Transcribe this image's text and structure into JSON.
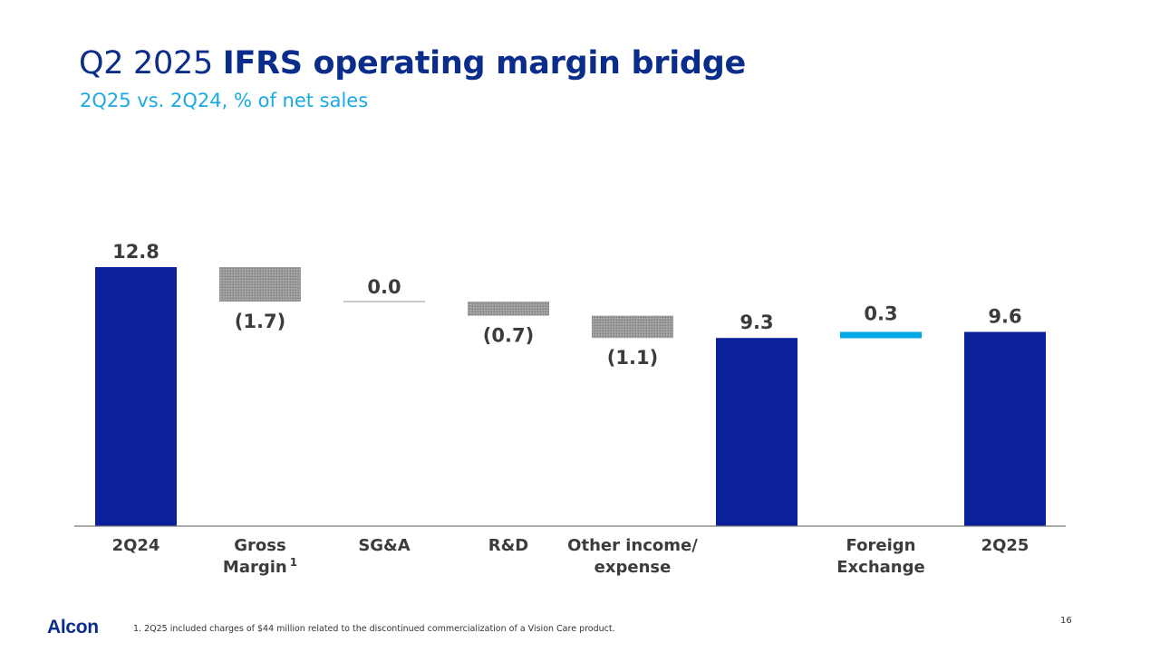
{
  "title": {
    "light": "Q2 2025",
    "bold": "IFRS operating margin bridge"
  },
  "subtitle": "2Q25 vs. 2Q24, % of net sales",
  "colors": {
    "total": "#0a219b",
    "negative": "#999999",
    "neutral": "#aaaaaa",
    "positive": "#00a9e6",
    "text": "#3c3c3c",
    "axis": "#777777"
  },
  "chart_data": {
    "type": "bar",
    "subtype": "waterfall",
    "title": "Q2 2025 IFRS operating margin bridge",
    "subtitle": "2Q25 vs. 2Q24, % of net sales",
    "ylim": [
      0,
      12.8
    ],
    "steps": [
      {
        "category": [
          "2Q24"
        ],
        "kind": "total",
        "value": 12.8,
        "label": "12.8"
      },
      {
        "category": [
          "Gross",
          "Margin"
        ],
        "footnote_marker": "1",
        "kind": "delta",
        "value": -1.7,
        "label": "(1.7)"
      },
      {
        "category": [
          "SG&A"
        ],
        "kind": "delta",
        "value": 0.0,
        "label": "0.0"
      },
      {
        "category": [
          "R&D"
        ],
        "kind": "delta",
        "value": -0.7,
        "label": "(0.7)"
      },
      {
        "category": [
          "Other income/",
          "expense"
        ],
        "kind": "delta",
        "value": -1.1,
        "label": "(1.1)"
      },
      {
        "category": [],
        "kind": "total",
        "value": 9.3,
        "label": "9.3"
      },
      {
        "category": [
          "Foreign",
          "Exchange"
        ],
        "kind": "delta",
        "value": 0.3,
        "label": "0.3"
      },
      {
        "category": [
          "2Q25"
        ],
        "kind": "total",
        "value": 9.6,
        "label": "9.6"
      }
    ]
  },
  "footer": {
    "logo": "Alcon",
    "footnote": "1. 2Q25 included charges of $44 million related to the discontinued commercialization of a Vision Care product.",
    "page_number": "16"
  }
}
